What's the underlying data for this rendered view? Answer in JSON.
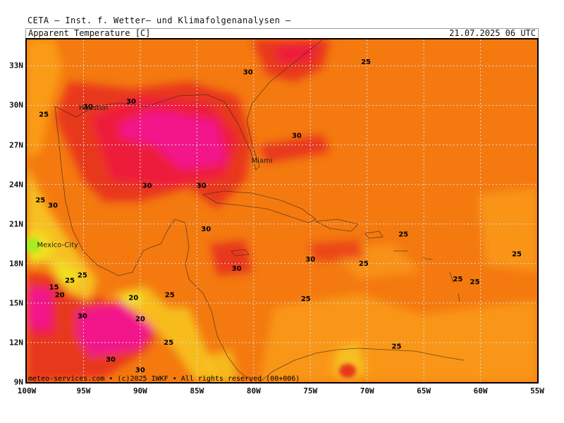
{
  "header": {
    "title": "CETA — Inst. f. Wetter— und Klimafolgenanalysen —",
    "parameter": "Apparent Temperature [C]",
    "valid_time": "21.07.2025 06 UTC"
  },
  "map": {
    "extent": {
      "lon_min": -100,
      "lon_max": -55,
      "lat_min": 9,
      "lat_max": 35
    },
    "lat_labels": [
      "33N",
      "30N",
      "27N",
      "24N",
      "21N",
      "18N",
      "15N",
      "12N",
      "9N"
    ],
    "lon_labels": [
      "100W",
      "95W",
      "90W",
      "85W",
      "80W",
      "75W",
      "70W",
      "65W",
      "60W",
      "55W"
    ],
    "grid": true,
    "colors": {
      "ocean_base": "#f47a10",
      "warm_30": "#e8381c",
      "hot_33": "#ee1a3a",
      "extreme_35": "#f2128a",
      "mild_25": "#fa9b18",
      "cool_20": "#f7c020",
      "cooler_15": "#f0e020",
      "cold_10": "#a6ec20"
    },
    "contour_labels": [
      {
        "text": "25",
        "lon": -98.5,
        "lat": 29.3
      },
      {
        "text": "30",
        "lon": -94.6,
        "lat": 29.9
      },
      {
        "text": "30",
        "lon": -90.8,
        "lat": 30.3
      },
      {
        "text": "30",
        "lon": -80.5,
        "lat": 32.5
      },
      {
        "text": "25",
        "lon": -70.1,
        "lat": 33.3
      },
      {
        "text": "30",
        "lon": -76.2,
        "lat": 27.7
      },
      {
        "text": "30",
        "lon": -89.4,
        "lat": 23.9
      },
      {
        "text": "30",
        "lon": -84.6,
        "lat": 23.9
      },
      {
        "text": "25",
        "lon": -98.8,
        "lat": 22.8
      },
      {
        "text": "30",
        "lon": -97.7,
        "lat": 22.4
      },
      {
        "text": "30",
        "lon": -84.2,
        "lat": 20.6
      },
      {
        "text": "30",
        "lon": -81.5,
        "lat": 17.6
      },
      {
        "text": "30",
        "lon": -75.0,
        "lat": 18.3
      },
      {
        "text": "25",
        "lon": -70.3,
        "lat": 18.0
      },
      {
        "text": "25",
        "lon": -66.8,
        "lat": 20.2
      },
      {
        "text": "25",
        "lon": -56.8,
        "lat": 18.7
      },
      {
        "text": "25",
        "lon": -95.1,
        "lat": 17.1
      },
      {
        "text": "25",
        "lon": -96.2,
        "lat": 16.7
      },
      {
        "text": "15",
        "lon": -97.6,
        "lat": 16.2
      },
      {
        "text": "20",
        "lon": -97.1,
        "lat": 15.6
      },
      {
        "text": "20",
        "lon": -90.6,
        "lat": 15.4
      },
      {
        "text": "25",
        "lon": -87.4,
        "lat": 15.6
      },
      {
        "text": "25",
        "lon": -75.4,
        "lat": 15.3
      },
      {
        "text": "25",
        "lon": -62.0,
        "lat": 16.8
      },
      {
        "text": "25",
        "lon": -60.5,
        "lat": 16.6
      },
      {
        "text": "30",
        "lon": -95.1,
        "lat": 14.0
      },
      {
        "text": "20",
        "lon": -90.0,
        "lat": 13.8
      },
      {
        "text": "25",
        "lon": -87.5,
        "lat": 12.0
      },
      {
        "text": "25",
        "lon": -67.4,
        "lat": 11.7
      },
      {
        "text": "30",
        "lon": -92.6,
        "lat": 10.7
      },
      {
        "text": "30",
        "lon": -90.0,
        "lat": 9.9
      }
    ],
    "cities": [
      {
        "name": "Houston",
        "lon": -95.4,
        "lat": 29.8
      },
      {
        "name": "Miami",
        "lon": -80.2,
        "lat": 25.8
      },
      {
        "name": "Mexico-City",
        "lon": -99.1,
        "lat": 19.4
      }
    ]
  },
  "footer": {
    "credit": "meteo-services.com • (c)2025 IWKF • All rights reserved (00+006)"
  }
}
